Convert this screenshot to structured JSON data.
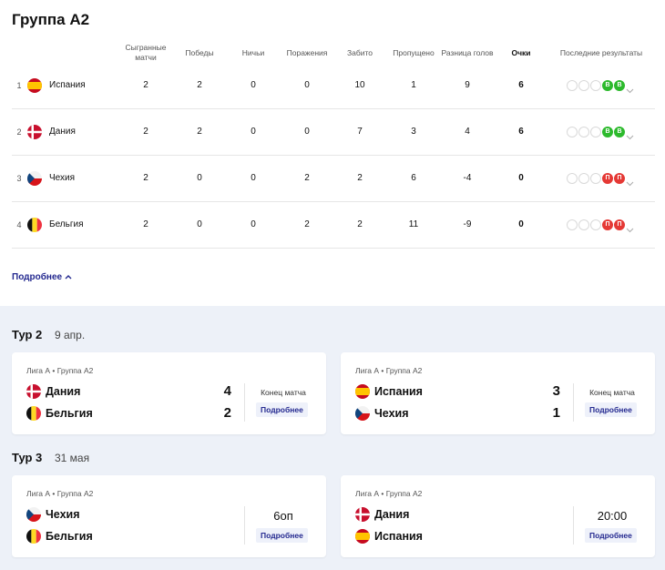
{
  "title": "Группа А2",
  "table": {
    "headers": [
      "Сыгранные матчи",
      "Победы",
      "Ничьи",
      "Поражения",
      "Забито",
      "Пропущено",
      "Разница голов",
      "Очки",
      "Последние результаты"
    ],
    "rows": [
      {
        "rank": 1,
        "team": "Испания",
        "values": [
          2,
          2,
          0,
          0,
          10,
          1,
          9,
          6
        ],
        "form": [
          "В",
          "В"
        ]
      },
      {
        "rank": 2,
        "team": "Дания",
        "values": [
          2,
          2,
          0,
          0,
          7,
          3,
          4,
          6
        ],
        "form": [
          "В",
          "В"
        ]
      },
      {
        "rank": 3,
        "team": "Чехия",
        "values": [
          2,
          0,
          0,
          2,
          2,
          6,
          -4,
          0
        ],
        "form": [
          "П",
          "П"
        ]
      },
      {
        "rank": 4,
        "team": "Бельгия",
        "values": [
          2,
          0,
          0,
          2,
          2,
          11,
          -9,
          0
        ],
        "form": [
          "П",
          "П"
        ]
      }
    ]
  },
  "more_link": "Подробнее",
  "rounds": [
    {
      "label": "Тур 2",
      "date": "9 апр.",
      "matches": [
        {
          "competition": "Лига А • Группа А2",
          "home": "Дания",
          "away": "Бельгия",
          "home_score": 4,
          "away_score": 2,
          "status": "Конец матча",
          "button": "Подробнее"
        },
        {
          "competition": "Лига А • Группа А2",
          "home": "Испания",
          "away": "Чехия",
          "home_score": 3,
          "away_score": 1,
          "status": "Конец матча",
          "button": "Подробнее"
        }
      ]
    },
    {
      "label": "Тур 3",
      "date": "31 мая",
      "matches": [
        {
          "competition": "Лига А • Группа А2",
          "home": "Чехия",
          "away": "Бельгия",
          "time": "6оп",
          "button": "Подробнее"
        },
        {
          "competition": "Лига А • Группа А2",
          "home": "Дания",
          "away": "Испания",
          "time": "20:00",
          "button": "Подробнее"
        }
      ]
    }
  ]
}
